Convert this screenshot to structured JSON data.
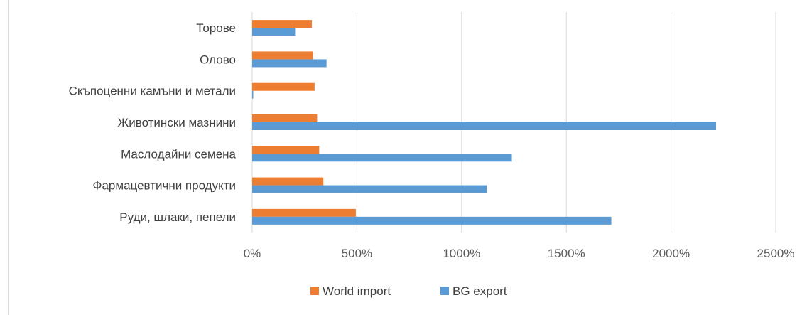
{
  "chart_data": {
    "type": "bar",
    "orientation": "horizontal",
    "title": "",
    "xlabel": "",
    "ylabel": "",
    "categories": [
      "Торове",
      "Олово",
      "Скъпоценни камъни и метали",
      "Животински мазнини",
      "Маслодайни семена",
      "Фармацевтични продукти",
      "Руди, шлаки, пепели"
    ],
    "series": [
      {
        "name": "World import",
        "color": "#ed7d31",
        "values": [
          285,
          290,
          298,
          310,
          320,
          340,
          495
        ]
      },
      {
        "name": "BG export",
        "color": "#5b9bd5",
        "values": [
          205,
          355,
          5,
          2215,
          1240,
          1120,
          1715
        ]
      }
    ],
    "xlim": [
      0,
      2500
    ],
    "xticks": [
      0,
      500,
      1000,
      1500,
      2000,
      2500
    ],
    "xtick_labels": [
      "0%",
      "500%",
      "1000%",
      "1500%",
      "2000%",
      "2500%"
    ],
    "grid": true,
    "legend": {
      "position": "bottom",
      "order": [
        "World import",
        "BG export"
      ]
    }
  }
}
